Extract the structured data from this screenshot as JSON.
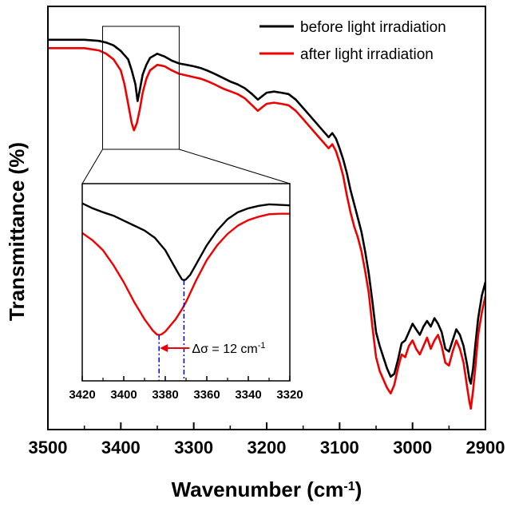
{
  "chart_data": {
    "type": "line",
    "xlabel": "Wavenumber (cm",
    "xlabel_sup": "-1",
    "xlabel_close": ")",
    "ylabel": "Transmittance (%)",
    "xlim": [
      3500,
      2900
    ],
    "x_reversed": true,
    "x_ticks": [
      "3500",
      "3400",
      "3300",
      "3200",
      "3100",
      "3000",
      "2900"
    ],
    "y_ticks_shown": false,
    "legend_position": "top-right",
    "series": [
      {
        "name": "before light irradiation",
        "color": "#000000",
        "x": [
          3500,
          3450,
          3430,
          3420,
          3410,
          3400,
          3390,
          3385,
          3380,
          3377,
          3374,
          3370,
          3365,
          3360,
          3350,
          3340,
          3330,
          3320,
          3310,
          3300,
          3290,
          3280,
          3270,
          3260,
          3250,
          3240,
          3230,
          3220,
          3212,
          3205,
          3200,
          3190,
          3180,
          3170,
          3160,
          3150,
          3140,
          3130,
          3120,
          3115,
          3110,
          3105,
          3100,
          3095,
          3090,
          3085,
          3080,
          3075,
          3070,
          3065,
          3060,
          3055,
          3050,
          3045,
          3040,
          3035,
          3030,
          3025,
          3020,
          3015,
          3010,
          3005,
          3000,
          2995,
          2990,
          2985,
          2980,
          2975,
          2970,
          2965,
          2960,
          2955,
          2950,
          2945,
          2940,
          2935,
          2930,
          2925,
          2922,
          2920,
          2917,
          2914,
          2910,
          2905,
          2900
        ],
        "values": [
          100,
          100,
          99.6,
          99,
          98,
          96,
          93,
          89,
          84,
          78,
          82,
          87.5,
          91,
          93.5,
          95,
          94,
          92.5,
          91.5,
          91,
          90.5,
          89.8,
          88.8,
          87.6,
          86.3,
          85,
          84,
          82.6,
          80.5,
          78.5,
          80,
          81,
          81.4,
          81,
          80.5,
          78.5,
          75.5,
          72.5,
          69.5,
          66.5,
          65,
          66.5,
          64.5,
          61,
          57,
          52,
          46,
          41,
          36,
          31,
          24,
          16,
          6,
          -5,
          -10,
          -14,
          -18,
          -21,
          -20,
          -15,
          -9,
          -8,
          -5,
          -2,
          -4,
          -6,
          -3,
          -1,
          -3,
          0,
          -2,
          -5,
          -11,
          -12,
          -8,
          -4,
          -6,
          -10,
          -17,
          -22,
          -23.5,
          -18,
          -10,
          0,
          8,
          13
        ]
      },
      {
        "name": "after light irradiation",
        "color": "#ee0000",
        "x": [
          3500,
          3450,
          3430,
          3420,
          3410,
          3400,
          3395,
          3390,
          3385,
          3382,
          3378,
          3374,
          3370,
          3365,
          3360,
          3350,
          3340,
          3330,
          3320,
          3310,
          3300,
          3290,
          3280,
          3270,
          3260,
          3250,
          3240,
          3230,
          3220,
          3212,
          3205,
          3200,
          3190,
          3180,
          3170,
          3160,
          3150,
          3140,
          3130,
          3120,
          3115,
          3110,
          3105,
          3100,
          3095,
          3090,
          3085,
          3080,
          3075,
          3070,
          3065,
          3060,
          3055,
          3050,
          3045,
          3040,
          3035,
          3030,
          3025,
          3020,
          3015,
          3010,
          3005,
          3000,
          2995,
          2990,
          2985,
          2980,
          2975,
          2970,
          2965,
          2960,
          2955,
          2950,
          2945,
          2940,
          2935,
          2930,
          2925,
          2922,
          2920,
          2917,
          2914,
          2910,
          2905,
          2900
        ],
        "values": [
          97,
          97,
          96.2,
          95,
          93,
          89,
          84,
          77,
          70,
          67.5,
          70,
          75,
          81,
          86,
          89,
          91,
          90.5,
          89,
          87.8,
          87.2,
          86.6,
          86,
          85,
          83.8,
          82.5,
          81.5,
          80.5,
          79,
          76.5,
          74.5,
          76,
          77,
          77.4,
          77,
          76.5,
          74.5,
          71.5,
          68.5,
          65.5,
          62.5,
          61,
          62.5,
          60,
          56,
          51,
          44,
          38,
          33,
          29,
          24,
          17,
          9,
          -3,
          -14,
          -19,
          -22,
          -25,
          -27,
          -24,
          -18,
          -13,
          -14,
          -10,
          -8,
          -11,
          -13,
          -10,
          -7,
          -11,
          -8,
          -6,
          -10,
          -16,
          -17,
          -12,
          -8,
          -11,
          -16,
          -25,
          -30,
          -32.5,
          -26,
          -18,
          -6,
          2,
          8
        ]
      }
    ],
    "zoom_box_xlim": [
      3425,
      3320
    ],
    "inset": {
      "type": "line",
      "xlim": [
        3420,
        3320
      ],
      "x_reversed": true,
      "x_ticks": [
        "3420",
        "3400",
        "3380",
        "3360",
        "3340",
        "3320"
      ],
      "annotation": {
        "label": "Δσ = 12 cm",
        "label_sup": "-1",
        "line_positions": [
          3383,
          3371
        ],
        "line_color": "#0000dd",
        "arrow_color": "#ee0000"
      },
      "series": [
        {
          "name": "before light irradiation",
          "color": "#000000",
          "x": [
            3420,
            3415,
            3410,
            3405,
            3400,
            3395,
            3390,
            3385,
            3380,
            3378,
            3376,
            3374,
            3372,
            3371,
            3370,
            3368,
            3366,
            3364,
            3362,
            3360,
            3355,
            3350,
            3345,
            3340,
            3335,
            3330,
            3325,
            3320
          ],
          "values": [
            86,
            85,
            84.2,
            83.5,
            82.5,
            81.5,
            80.5,
            79,
            76.5,
            75,
            73.5,
            72,
            70.6,
            70.4,
            70.6,
            71.5,
            73,
            74.5,
            76,
            77.5,
            80.5,
            82.8,
            84.2,
            85,
            85.5,
            85.8,
            85.7,
            85.6
          ]
        },
        {
          "name": "after light irradiation",
          "color": "#ee0000",
          "x": [
            3420,
            3415,
            3410,
            3405,
            3400,
            3395,
            3390,
            3386,
            3384,
            3383,
            3382,
            3380,
            3378,
            3375,
            3372,
            3370,
            3365,
            3360,
            3355,
            3350,
            3345,
            3340,
            3335,
            3330,
            3325,
            3320
          ],
          "values": [
            80,
            78.5,
            76.5,
            73.5,
            70,
            66,
            62.5,
            60.2,
            59.4,
            59.3,
            59.4,
            60,
            61,
            62.5,
            64.5,
            66,
            70.5,
            74.5,
            77.5,
            79.8,
            81.5,
            82.6,
            83.3,
            83.8,
            83.9,
            83.9
          ]
        }
      ]
    }
  }
}
